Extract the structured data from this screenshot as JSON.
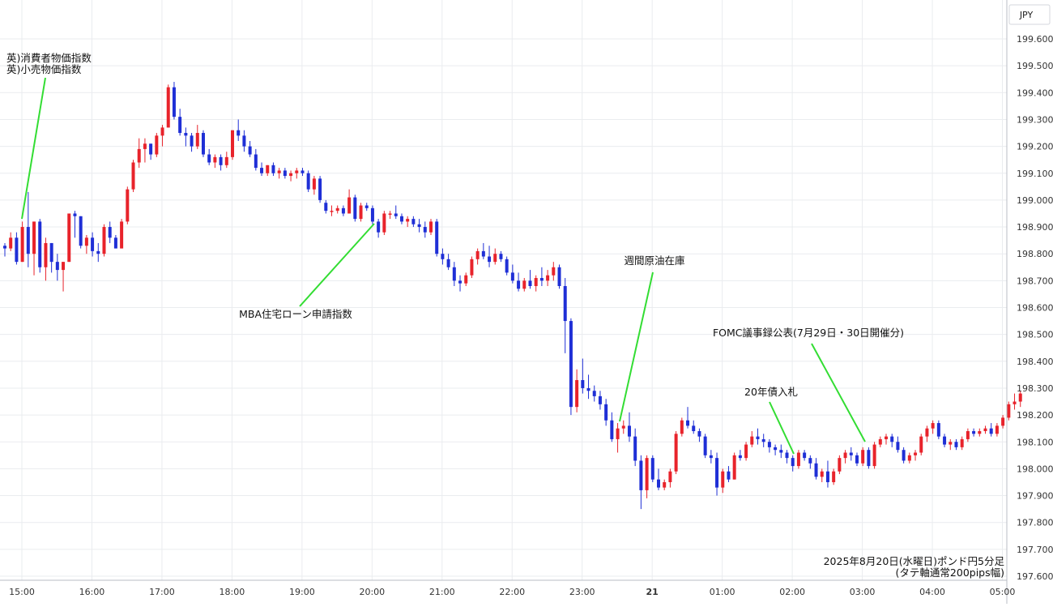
{
  "chart_data": {
    "type": "candlestick",
    "currency_label": "JPY",
    "caption_line1": "2025年8月20日(水曜日)ポンド円5分足",
    "caption_line2": "(タテ軸通常200pips幅)",
    "ylim": [
      197.6,
      199.6
    ],
    "y_ticks": [
      "199.600",
      "199.500",
      "199.400",
      "199.300",
      "199.200",
      "199.100",
      "199.000",
      "198.900",
      "198.800",
      "198.700",
      "198.600",
      "198.500",
      "198.400",
      "198.300",
      "198.200",
      "198.100",
      "198.000",
      "197.900",
      "197.800",
      "197.700",
      "197.600"
    ],
    "x_ticks": [
      "15:00",
      "16:00",
      "17:00",
      "18:00",
      "19:00",
      "20:00",
      "21:00",
      "22:00",
      "23:00",
      "21",
      "01:00",
      "02:00",
      "03:00",
      "04:00",
      "05:00"
    ],
    "colors": {
      "up": "#e8232b",
      "down": "#1f2fd6",
      "grid": "#eaecef",
      "axis_text": "#333333",
      "annotation_line": "#33dd33"
    },
    "annotations": [
      {
        "label_lines": [
          "英)消費者物価指数",
          "英)小売物価指数"
        ],
        "time": "15:00"
      },
      {
        "label_lines": [
          "MBA住宅ローン申請指数"
        ],
        "time": "20:00"
      },
      {
        "label_lines": [
          "週間原油在庫"
        ],
        "time": "23:30"
      },
      {
        "label_lines": [
          "20年債入札"
        ],
        "time": "02:00"
      },
      {
        "label_lines": [
          "FOMC議事録公表(7月29日・30日開催分)"
        ],
        "time": "03:00"
      }
    ],
    "series": [
      {
        "ohlc": [
          [
            198.83,
            198.84,
            198.79,
            198.82
          ],
          [
            198.82,
            198.88,
            198.81,
            198.86
          ],
          [
            198.86,
            198.88,
            198.76,
            198.77
          ],
          [
            198.77,
            198.92,
            198.77,
            198.9
          ],
          [
            198.9,
            199.03,
            198.75,
            198.8
          ],
          [
            198.8,
            198.92,
            198.72,
            198.92
          ],
          [
            198.92,
            198.93,
            198.73,
            198.75
          ],
          [
            198.75,
            198.86,
            198.7,
            198.84
          ],
          [
            198.84,
            198.84,
            198.73,
            198.77
          ],
          [
            198.77,
            198.8,
            198.7,
            198.74
          ],
          [
            198.74,
            198.77,
            198.66,
            198.77
          ],
          [
            198.77,
            198.95,
            198.77,
            198.95
          ],
          [
            198.95,
            198.96,
            198.86,
            198.94
          ],
          [
            198.94,
            198.94,
            198.82,
            198.83
          ],
          [
            198.83,
            198.87,
            198.8,
            198.86
          ],
          [
            198.86,
            198.88,
            198.79,
            198.81
          ],
          [
            198.81,
            198.84,
            198.77,
            198.8
          ],
          [
            198.8,
            198.91,
            198.79,
            198.9
          ],
          [
            198.9,
            198.92,
            198.84,
            198.86
          ],
          [
            198.86,
            198.87,
            198.82,
            198.82
          ],
          [
            198.82,
            198.93,
            198.82,
            198.92
          ],
          [
            198.92,
            199.05,
            198.91,
            199.04
          ],
          [
            199.04,
            199.15,
            199.03,
            199.14
          ],
          [
            199.14,
            199.23,
            199.12,
            199.19
          ],
          [
            199.19,
            199.23,
            199.14,
            199.21
          ],
          [
            199.21,
            199.21,
            199.15,
            199.17
          ],
          [
            199.17,
            199.25,
            199.16,
            199.24
          ],
          [
            199.24,
            199.28,
            199.2,
            199.27
          ],
          [
            199.27,
            199.43,
            199.27,
            199.42
          ],
          [
            199.42,
            199.44,
            199.3,
            199.31
          ],
          [
            199.31,
            199.34,
            199.24,
            199.25
          ],
          [
            199.25,
            199.27,
            199.2,
            199.24
          ],
          [
            199.24,
            199.25,
            199.18,
            199.2
          ],
          [
            199.2,
            199.28,
            199.19,
            199.25
          ],
          [
            199.25,
            199.26,
            199.16,
            199.17
          ],
          [
            199.17,
            199.19,
            199.13,
            199.14
          ],
          [
            199.14,
            199.17,
            199.12,
            199.16
          ],
          [
            199.16,
            199.17,
            199.11,
            199.13
          ],
          [
            199.13,
            199.18,
            199.12,
            199.16
          ],
          [
            199.16,
            199.26,
            199.15,
            199.26
          ],
          [
            199.26,
            199.3,
            199.22,
            199.24
          ],
          [
            199.24,
            199.26,
            199.18,
            199.2
          ],
          [
            199.2,
            199.22,
            199.16,
            199.17
          ],
          [
            199.17,
            199.19,
            199.11,
            199.12
          ],
          [
            199.12,
            199.14,
            199.09,
            199.1
          ],
          [
            199.1,
            199.13,
            199.09,
            199.13
          ],
          [
            199.13,
            199.14,
            199.09,
            199.1
          ],
          [
            199.1,
            199.12,
            199.08,
            199.11
          ],
          [
            199.11,
            199.12,
            199.08,
            199.09
          ],
          [
            199.09,
            199.11,
            199.07,
            199.1
          ],
          [
            199.1,
            199.12,
            199.08,
            199.11
          ],
          [
            199.11,
            199.12,
            199.09,
            199.1
          ],
          [
            199.1,
            199.11,
            199.03,
            199.04
          ],
          [
            199.04,
            199.09,
            199.02,
            199.08
          ],
          [
            199.08,
            199.09,
            198.99,
            199.0
          ],
          [
            198.99,
            199.0,
            198.95,
            198.96
          ],
          [
            198.96,
            198.98,
            198.94,
            198.96
          ],
          [
            198.96,
            198.98,
            198.95,
            198.97
          ],
          [
            198.97,
            198.98,
            198.94,
            198.95
          ],
          [
            198.95,
            199.04,
            198.95,
            199.01
          ],
          [
            199.01,
            199.02,
            198.92,
            198.93
          ],
          [
            198.93,
            198.99,
            198.92,
            198.98
          ],
          [
            198.98,
            198.99,
            198.96,
            198.97
          ],
          [
            198.97,
            198.98,
            198.91,
            198.92
          ],
          [
            198.92,
            198.93,
            198.86,
            198.88
          ],
          [
            198.88,
            198.96,
            198.87,
            198.95
          ],
          [
            198.95,
            198.96,
            198.93,
            198.95
          ],
          [
            198.95,
            198.98,
            198.93,
            198.94
          ],
          [
            198.94,
            198.95,
            198.91,
            198.92
          ],
          [
            198.92,
            198.94,
            198.9,
            198.93
          ],
          [
            198.93,
            198.94,
            198.9,
            198.91
          ],
          [
            198.91,
            198.93,
            198.88,
            198.9
          ],
          [
            198.9,
            198.92,
            198.86,
            198.88
          ],
          [
            198.88,
            198.93,
            198.87,
            198.92
          ],
          [
            198.92,
            198.93,
            198.79,
            198.8
          ],
          [
            198.8,
            198.82,
            198.76,
            198.78
          ],
          [
            198.78,
            198.8,
            198.74,
            198.75
          ],
          [
            198.75,
            198.77,
            198.68,
            198.7
          ],
          [
            198.7,
            198.72,
            198.66,
            198.69
          ],
          [
            198.69,
            198.73,
            198.68,
            198.72
          ],
          [
            198.72,
            198.79,
            198.71,
            198.78
          ],
          [
            198.78,
            198.82,
            198.76,
            198.81
          ],
          [
            198.81,
            198.84,
            198.78,
            198.79
          ],
          [
            198.79,
            198.83,
            198.75,
            198.77
          ],
          [
            198.77,
            198.82,
            198.76,
            198.8
          ],
          [
            198.8,
            198.81,
            198.77,
            198.78
          ],
          [
            198.78,
            198.79,
            198.72,
            198.73
          ],
          [
            198.73,
            198.76,
            198.69,
            198.7
          ],
          [
            198.7,
            198.73,
            198.66,
            198.67
          ],
          [
            198.67,
            198.71,
            198.66,
            198.7
          ],
          [
            198.7,
            198.74,
            198.67,
            198.68
          ],
          [
            198.68,
            198.72,
            198.66,
            198.71
          ],
          [
            198.71,
            198.75,
            198.68,
            198.7
          ],
          [
            198.7,
            198.74,
            198.68,
            198.72
          ],
          [
            198.72,
            198.77,
            198.7,
            198.75
          ],
          [
            198.75,
            198.76,
            198.67,
            198.68
          ],
          [
            198.68,
            198.71,
            198.43,
            198.55
          ],
          [
            198.55,
            198.56,
            198.2,
            198.23
          ],
          [
            198.23,
            198.37,
            198.21,
            198.33
          ],
          [
            198.33,
            198.41,
            198.28,
            198.3
          ],
          [
            198.3,
            198.35,
            198.26,
            198.29
          ],
          [
            198.29,
            198.31,
            198.25,
            198.27
          ],
          [
            198.27,
            198.29,
            198.22,
            198.24
          ],
          [
            198.24,
            198.26,
            198.16,
            198.18
          ],
          [
            198.18,
            198.21,
            198.1,
            198.11
          ],
          [
            198.11,
            198.17,
            198.06,
            198.15
          ],
          [
            198.15,
            198.18,
            198.13,
            198.16
          ],
          [
            198.16,
            198.21,
            198.1,
            198.12
          ],
          [
            198.12,
            198.15,
            198.01,
            198.03
          ],
          [
            198.03,
            198.05,
            197.85,
            197.92
          ],
          [
            197.92,
            198.05,
            197.89,
            198.04
          ],
          [
            198.04,
            198.05,
            197.95,
            197.96
          ],
          [
            197.96,
            198.0,
            197.92,
            197.93
          ],
          [
            197.93,
            197.96,
            197.92,
            197.95
          ],
          [
            197.95,
            198.0,
            197.93,
            197.99
          ],
          [
            197.99,
            198.14,
            197.98,
            198.13
          ],
          [
            198.13,
            198.19,
            198.12,
            198.18
          ],
          [
            198.18,
            198.23,
            198.15,
            198.16
          ],
          [
            198.16,
            198.18,
            198.13,
            198.14
          ],
          [
            198.14,
            198.15,
            198.1,
            198.12
          ],
          [
            198.12,
            198.13,
            198.04,
            198.05
          ],
          [
            198.05,
            198.07,
            198.02,
            198.04
          ],
          [
            198.04,
            198.06,
            197.9,
            197.93
          ],
          [
            197.93,
            198.0,
            197.91,
            197.99
          ],
          [
            197.99,
            198.01,
            197.95,
            197.96
          ],
          [
            197.96,
            198.06,
            197.96,
            198.05
          ],
          [
            198.05,
            198.07,
            198.03,
            198.04
          ],
          [
            198.04,
            198.1,
            198.03,
            198.09
          ],
          [
            198.09,
            198.14,
            198.08,
            198.12
          ],
          [
            198.12,
            198.15,
            198.09,
            198.11
          ],
          [
            198.11,
            198.13,
            198.08,
            198.1
          ],
          [
            198.1,
            198.11,
            198.06,
            198.08
          ],
          [
            198.08,
            198.09,
            198.05,
            198.07
          ],
          [
            198.07,
            198.09,
            198.04,
            198.06
          ],
          [
            198.06,
            198.07,
            198.02,
            198.04
          ],
          [
            198.04,
            198.05,
            197.99,
            198.01
          ],
          [
            198.01,
            198.07,
            198.0,
            198.06
          ],
          [
            198.06,
            198.07,
            198.03,
            198.04
          ],
          [
            198.04,
            198.05,
            198.0,
            198.02
          ],
          [
            198.02,
            198.04,
            197.96,
            197.97
          ],
          [
            197.97,
            198.0,
            197.95,
            197.99
          ],
          [
            197.99,
            198.03,
            197.93,
            197.95
          ],
          [
            197.95,
            198.0,
            197.94,
            197.99
          ],
          [
            197.99,
            198.05,
            197.98,
            198.04
          ],
          [
            198.04,
            198.07,
            198.02,
            198.06
          ],
          [
            198.06,
            198.08,
            198.03,
            198.05
          ],
          [
            198.05,
            198.06,
            198.01,
            198.02
          ],
          [
            198.02,
            198.08,
            198.01,
            198.07
          ],
          [
            198.07,
            198.08,
            198.0,
            198.01
          ],
          [
            198.01,
            198.1,
            198.0,
            198.09
          ],
          [
            198.09,
            198.12,
            198.08,
            198.11
          ],
          [
            198.11,
            198.13,
            198.09,
            198.12
          ],
          [
            198.12,
            198.13,
            198.08,
            198.1
          ],
          [
            198.1,
            198.12,
            198.06,
            198.07
          ],
          [
            198.07,
            198.08,
            198.02,
            198.03
          ],
          [
            198.03,
            198.06,
            198.02,
            198.05
          ],
          [
            198.05,
            198.07,
            198.03,
            198.06
          ],
          [
            198.06,
            198.13,
            198.05,
            198.12
          ],
          [
            198.12,
            198.16,
            198.1,
            198.15
          ],
          [
            198.15,
            198.18,
            198.13,
            198.17
          ],
          [
            198.17,
            198.18,
            198.11,
            198.12
          ],
          [
            198.12,
            198.13,
            198.08,
            198.09
          ],
          [
            198.09,
            198.11,
            198.07,
            198.1
          ],
          [
            198.1,
            198.11,
            198.07,
            198.08
          ],
          [
            198.08,
            198.12,
            198.07,
            198.11
          ],
          [
            198.11,
            198.15,
            198.1,
            198.14
          ],
          [
            198.14,
            198.15,
            198.12,
            198.13
          ],
          [
            198.13,
            198.15,
            198.12,
            198.14
          ],
          [
            198.14,
            198.16,
            198.13,
            198.15
          ],
          [
            198.15,
            198.17,
            198.12,
            198.13
          ],
          [
            198.13,
            198.17,
            198.12,
            198.16
          ],
          [
            198.16,
            198.2,
            198.15,
            198.19
          ],
          [
            198.19,
            198.25,
            198.18,
            198.24
          ],
          [
            198.24,
            198.28,
            198.22,
            198.25
          ],
          [
            198.25,
            198.29,
            198.23,
            198.28
          ]
        ]
      }
    ]
  }
}
